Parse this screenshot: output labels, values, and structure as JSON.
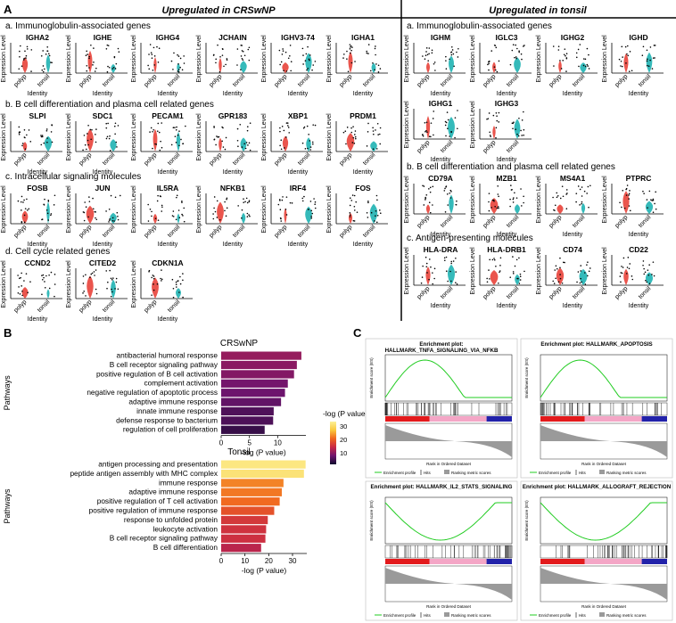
{
  "panelA": {
    "letter": "A",
    "left_header": "Upregulated in CRSwNP",
    "right_header": "Upregulated in tonsil",
    "y_axis_label": "Expression Level",
    "x_axis_label": "Identity",
    "group_labels": [
      "polyp",
      "tonsil"
    ],
    "left_sections": [
      {
        "title": "a. Immunoglobulin-associated genes",
        "genes": [
          "IGHA2",
          "IGHE",
          "IGHG4",
          "JCHAIN",
          "IGHV3-74",
          "IGHA1"
        ]
      },
      {
        "title": "b. B cell differentiation and plasma cell related genes",
        "genes": [
          "SLPI",
          "SDC1",
          "PECAM1",
          "GPR183",
          "XBP1",
          "PRDM1"
        ]
      },
      {
        "title": "c. Intracellular signaling molecules",
        "genes": [
          "FOSB",
          "JUN",
          "IL5RA",
          "NFKB1",
          "IRF4",
          "FOS"
        ]
      },
      {
        "title": "d. Cell cycle related genes",
        "genes": [
          "CCND2",
          "CITED2",
          "CDKN1A"
        ]
      }
    ],
    "right_sections": [
      {
        "title": "a. Immunoglobulin-associated genes",
        "genes": [
          "IGHM",
          "IGLC3",
          "IGHG2",
          "IGHD",
          "IGHG1",
          "IGHG3"
        ]
      },
      {
        "title": "b. B cell differentiation and plasma cell related genes",
        "genes": [
          "CD79A",
          "MZB1",
          "MS4A1",
          "PTPRC"
        ]
      },
      {
        "title": "c. Antigen-presenting molecules",
        "genes": [
          "HLA-DRA",
          "HLA-DRB1",
          "CD74",
          "CD22"
        ]
      }
    ],
    "colors": {
      "polyp": "#e8423a",
      "tonsil": "#1fb3b3"
    }
  },
  "panelB": {
    "letter": "B",
    "y_axis_label": "Pathways",
    "legend_title": "-log (P value)",
    "x_axis_label": "-log (P value)",
    "chart_data": [
      {
        "type": "bar",
        "title": "CRSwNP",
        "categories": [
          "antibacterial humoral response",
          "B cell receptor signaling pathway",
          "positive regulation of B cell activation",
          "complement activation",
          "negative regulation of apoptotic process",
          "adaptive immune response",
          "innate immune response",
          "defense response to bacterium",
          "regulation of cell proliferation"
        ],
        "values": [
          14.2,
          13.4,
          12.9,
          11.8,
          11.3,
          10.6,
          9.3,
          9.2,
          7.7
        ],
        "xlim": [
          0,
          15
        ],
        "xticks": [
          "0",
          "5",
          "10"
        ]
      },
      {
        "type": "bar",
        "title": "Tonsil",
        "categories": [
          "antigen processing and presentation",
          "peptide antigen assembly with MHC complex",
          "immune response",
          "adaptive immune response",
          "positive regulation of T cell activation",
          "positive regulation of immune response",
          "response to unfolded protein",
          "leukocyte activation",
          "B cell receptor signaling pathway",
          "B cell differentiation"
        ],
        "values": [
          35.5,
          34.8,
          26.2,
          25.5,
          24.6,
          22.3,
          19.6,
          18.9,
          18.6,
          16.8
        ],
        "xlim": [
          0,
          36
        ],
        "xticks": [
          "0",
          "10",
          "20",
          "30"
        ]
      }
    ],
    "colorbar_ticks": [
      "30",
      "20",
      "10"
    ]
  },
  "panelC": {
    "letter": "C",
    "plots": [
      {
        "title1": "Enrichment plot:",
        "title2": "HALLMARK_TNFA_SIGNALING_VIA_NFKB",
        "direction": "up"
      },
      {
        "title1": "Enrichment plot: HALLMARK_APOPTOSIS",
        "title2": "",
        "direction": "up"
      },
      {
        "title1": "Enrichment plot: HALLMARK_IL2_STATS_SIGNALING",
        "title2": "",
        "direction": "down"
      },
      {
        "title1": "Enrichment plot: HALLMARK_ALLOGRAFT_REJECTION",
        "title2": "",
        "direction": "down"
      }
    ],
    "legend": [
      "Enrichment profile",
      "Hits",
      "Ranking metric scores"
    ],
    "es_label": "Enrichment score (ES)",
    "rank_label": "Rank in Ordered Dataset",
    "colors": {
      "profile": "#22cc22",
      "red": "#e31a1c",
      "pink": "#f4a6c6",
      "blue": "#2222aa",
      "gray": "#9a9a9a"
    }
  }
}
